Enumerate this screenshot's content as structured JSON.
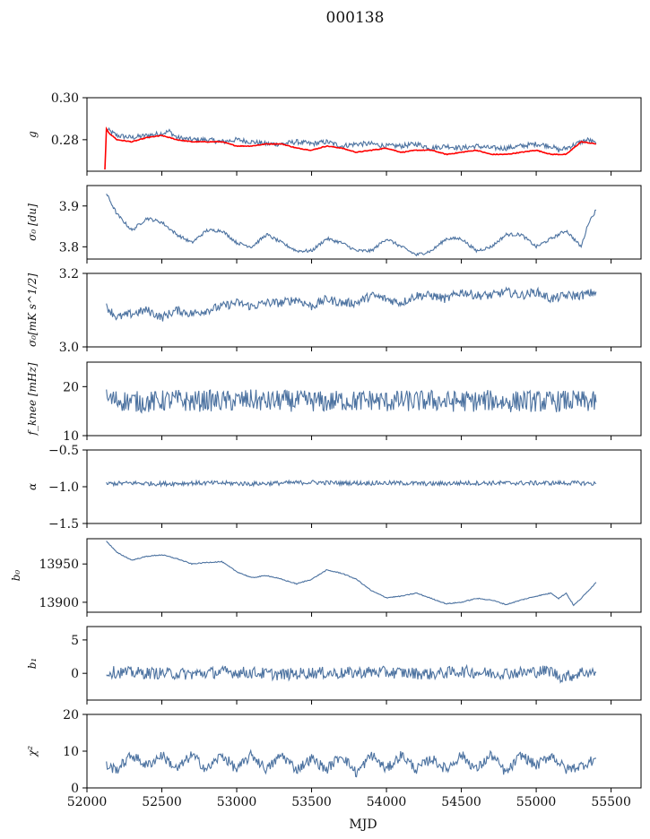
{
  "figure_title": "000138",
  "xlabel": "MJD",
  "x_range": [
    52000,
    55700
  ],
  "x_ticks": [
    52000,
    52500,
    53000,
    53500,
    54000,
    54500,
    55000,
    55500
  ],
  "chart_data": [
    {
      "type": "line",
      "ylabel": "g",
      "ylim": [
        0.265,
        0.3
      ],
      "y_ticks": [
        0.28,
        0.3
      ],
      "y_tick_labels": [
        "0.28",
        "0.30"
      ],
      "series": [
        {
          "color": "#4c72a0",
          "x": [
            52130,
            52200,
            52300,
            52400,
            52500,
            52550,
            52600,
            52700,
            52800,
            52900,
            53000,
            53100,
            53200,
            53300,
            53400,
            53500,
            53600,
            53700,
            53800,
            53900,
            54000,
            54100,
            54200,
            54300,
            54400,
            54500,
            54600,
            54700,
            54800,
            54900,
            55000,
            55100,
            55150,
            55200,
            55300,
            55350,
            55400
          ],
          "y": [
            0.285,
            0.282,
            0.281,
            0.282,
            0.283,
            0.284,
            0.281,
            0.28,
            0.28,
            0.279,
            0.28,
            0.279,
            0.278,
            0.278,
            0.279,
            0.278,
            0.279,
            0.277,
            0.278,
            0.278,
            0.277,
            0.277,
            0.278,
            0.276,
            0.277,
            0.276,
            0.277,
            0.276,
            0.276,
            0.277,
            0.278,
            0.277,
            0.275,
            0.276,
            0.279,
            0.28,
            0.278
          ]
        },
        {
          "color": "#ff0000",
          "x": [
            52120,
            52130,
            52150,
            52200,
            52300,
            52400,
            52500,
            52600,
            52700,
            52800,
            52900,
            53000,
            53100,
            53200,
            53300,
            53400,
            53500,
            53600,
            53700,
            53800,
            53900,
            54000,
            54100,
            54200,
            54300,
            54400,
            54500,
            54600,
            54700,
            54800,
            54900,
            55000,
            55100,
            55200,
            55300,
            55400
          ],
          "y": [
            0.266,
            0.285,
            0.283,
            0.28,
            0.279,
            0.281,
            0.282,
            0.28,
            0.279,
            0.279,
            0.279,
            0.277,
            0.277,
            0.278,
            0.278,
            0.276,
            0.275,
            0.277,
            0.276,
            0.274,
            0.275,
            0.276,
            0.274,
            0.275,
            0.275,
            0.273,
            0.274,
            0.275,
            0.273,
            0.273,
            0.274,
            0.275,
            0.273,
            0.273,
            0.279,
            0.278
          ]
        }
      ]
    },
    {
      "type": "line",
      "ylabel": "σ₀ [du]",
      "ylim": [
        3.77,
        3.95
      ],
      "y_ticks": [
        3.8,
        3.9
      ],
      "y_tick_labels": [
        "3.8",
        "3.9"
      ],
      "series": [
        {
          "color": "#4c72a0",
          "x": [
            52130,
            52200,
            52300,
            52400,
            52500,
            52600,
            52700,
            52800,
            52900,
            53000,
            53100,
            53200,
            53300,
            53400,
            53500,
            53600,
            53700,
            53800,
            53900,
            54000,
            54100,
            54200,
            54300,
            54400,
            54500,
            54600,
            54700,
            54800,
            54900,
            55000,
            55100,
            55200,
            55300,
            55350,
            55400
          ],
          "y": [
            3.93,
            3.88,
            3.84,
            3.87,
            3.86,
            3.83,
            3.81,
            3.84,
            3.84,
            3.81,
            3.8,
            3.83,
            3.81,
            3.79,
            3.79,
            3.82,
            3.81,
            3.79,
            3.79,
            3.82,
            3.8,
            3.78,
            3.79,
            3.82,
            3.82,
            3.79,
            3.8,
            3.83,
            3.83,
            3.8,
            3.82,
            3.84,
            3.8,
            3.86,
            3.89
          ]
        }
      ]
    },
    {
      "type": "line",
      "ylabel": "σ₀[mK s^1/2]",
      "ylim": [
        3.0,
        3.2
      ],
      "y_ticks": [
        3.0,
        3.2
      ],
      "y_tick_labels": [
        "3.0",
        "3.2"
      ],
      "series": [
        {
          "color": "#4c72a0",
          "x": [
            52130,
            52200,
            52300,
            52400,
            52500,
            52600,
            52700,
            52800,
            52900,
            53000,
            53100,
            53200,
            53300,
            53400,
            53500,
            53600,
            53700,
            53800,
            53900,
            54000,
            54100,
            54200,
            54300,
            54400,
            54500,
            54600,
            54700,
            54800,
            54900,
            55000,
            55100,
            55200,
            55300,
            55400
          ],
          "y": [
            3.11,
            3.08,
            3.09,
            3.1,
            3.08,
            3.1,
            3.09,
            3.1,
            3.11,
            3.12,
            3.11,
            3.12,
            3.12,
            3.13,
            3.11,
            3.13,
            3.12,
            3.12,
            3.14,
            3.13,
            3.12,
            3.14,
            3.14,
            3.13,
            3.15,
            3.14,
            3.14,
            3.15,
            3.14,
            3.15,
            3.13,
            3.14,
            3.14,
            3.15
          ]
        }
      ]
    },
    {
      "type": "line",
      "ylabel": "f_knee [mHz]",
      "ylim": [
        10,
        25
      ],
      "y_ticks": [
        10,
        20
      ],
      "y_tick_labels": [
        "10",
        "20"
      ],
      "series": [
        {
          "color": "#4c72a0",
          "x": [
            52130,
            52200,
            52300,
            52400,
            52500,
            52600,
            52700,
            52800,
            52900,
            53000,
            53100,
            53200,
            53300,
            53400,
            53500,
            53600,
            53700,
            53800,
            53900,
            54000,
            54100,
            54200,
            54300,
            54400,
            54500,
            54600,
            54700,
            54800,
            54900,
            55000,
            55100,
            55200,
            55300,
            55400
          ],
          "y": [
            17.5,
            17.2,
            17.0,
            16.8,
            17.1,
            17.3,
            16.9,
            17.2,
            17.0,
            17.1,
            17.3,
            16.9,
            17.2,
            17.0,
            17.1,
            16.8,
            17.2,
            17.0,
            17.3,
            16.9,
            17.1,
            17.0,
            17.2,
            16.9,
            17.1,
            17.0,
            17.2,
            16.8,
            17.1,
            17.0,
            16.9,
            17.1,
            17.0,
            16.8
          ]
        }
      ]
    },
    {
      "type": "line",
      "ylabel": "α",
      "ylim": [
        -1.5,
        -0.5
      ],
      "y_ticks": [
        -1.5,
        -1.0,
        -0.5
      ],
      "y_tick_labels": [
        "−1.5",
        "−1.0",
        "−0.5"
      ],
      "series": [
        {
          "color": "#4c72a0",
          "x": [
            52130,
            52300,
            52500,
            52700,
            52900,
            53100,
            53300,
            53500,
            53700,
            53900,
            54100,
            54300,
            54500,
            54700,
            54900,
            55100,
            55300,
            55400
          ],
          "y": [
            -0.96,
            -0.95,
            -0.96,
            -0.95,
            -0.95,
            -0.96,
            -0.95,
            -0.94,
            -0.95,
            -0.95,
            -0.95,
            -0.96,
            -0.95,
            -0.95,
            -0.95,
            -0.95,
            -0.95,
            -0.96
          ]
        }
      ]
    },
    {
      "type": "line",
      "ylabel": "b₀",
      "ylim": [
        13887,
        13983
      ],
      "y_ticks": [
        13900,
        13950
      ],
      "y_tick_labels": [
        "13900",
        "13950"
      ],
      "series": [
        {
          "color": "#4c72a0",
          "x": [
            52130,
            52200,
            52300,
            52400,
            52500,
            52600,
            52700,
            52800,
            52900,
            53000,
            53100,
            53200,
            53300,
            53400,
            53500,
            53600,
            53700,
            53800,
            53900,
            54000,
            54100,
            54200,
            54300,
            54400,
            54500,
            54600,
            54700,
            54800,
            54900,
            55000,
            55100,
            55150,
            55200,
            55250,
            55300,
            55400
          ],
          "y": [
            13980,
            13965,
            13955,
            13960,
            13962,
            13957,
            13950,
            13952,
            13953,
            13940,
            13932,
            13935,
            13930,
            13924,
            13930,
            13942,
            13938,
            13930,
            13915,
            13906,
            13908,
            13912,
            13905,
            13898,
            13900,
            13905,
            13903,
            13897,
            13903,
            13908,
            13912,
            13905,
            13912,
            13896,
            13905,
            13926
          ]
        }
      ]
    },
    {
      "type": "line",
      "ylabel": "b₁",
      "ylim": [
        -4,
        7
      ],
      "y_ticks": [
        0,
        5
      ],
      "y_tick_labels": [
        "0",
        "5"
      ],
      "series": [
        {
          "color": "#4c72a0",
          "x": [
            52130,
            52300,
            52500,
            52700,
            52900,
            53100,
            53300,
            53500,
            53700,
            53900,
            54100,
            54300,
            54500,
            54700,
            54900,
            55100,
            55150,
            55250,
            55300,
            55400
          ],
          "y": [
            0.2,
            0.1,
            0.0,
            -0.1,
            0.2,
            0.1,
            -0.2,
            0.1,
            0.0,
            0.2,
            0.1,
            -0.1,
            0.3,
            0.0,
            0.1,
            0.4,
            -0.5,
            -0.3,
            0.2,
            0.1
          ]
        }
      ]
    },
    {
      "type": "line",
      "ylabel": "χ²",
      "ylim": [
        0,
        20
      ],
      "y_ticks": [
        0,
        10,
        20
      ],
      "y_tick_labels": [
        "0",
        "10",
        "20"
      ],
      "series": [
        {
          "color": "#4c72a0",
          "x": [
            52130,
            52200,
            52300,
            52400,
            52500,
            52600,
            52700,
            52800,
            52900,
            53000,
            53100,
            53200,
            53300,
            53400,
            53500,
            53600,
            53700,
            53800,
            53900,
            54000,
            54100,
            54200,
            54300,
            54400,
            54500,
            54600,
            54700,
            54800,
            54900,
            55000,
            55100,
            55200,
            55300,
            55400
          ],
          "y": [
            6,
            5,
            9,
            6,
            9,
            5,
            9,
            5,
            9,
            5,
            9,
            5,
            9,
            5,
            8,
            5,
            9,
            4,
            9,
            5,
            9,
            5,
            8,
            5,
            9,
            5,
            9,
            4,
            9,
            6,
            9,
            5,
            6,
            8
          ]
        }
      ]
    }
  ]
}
